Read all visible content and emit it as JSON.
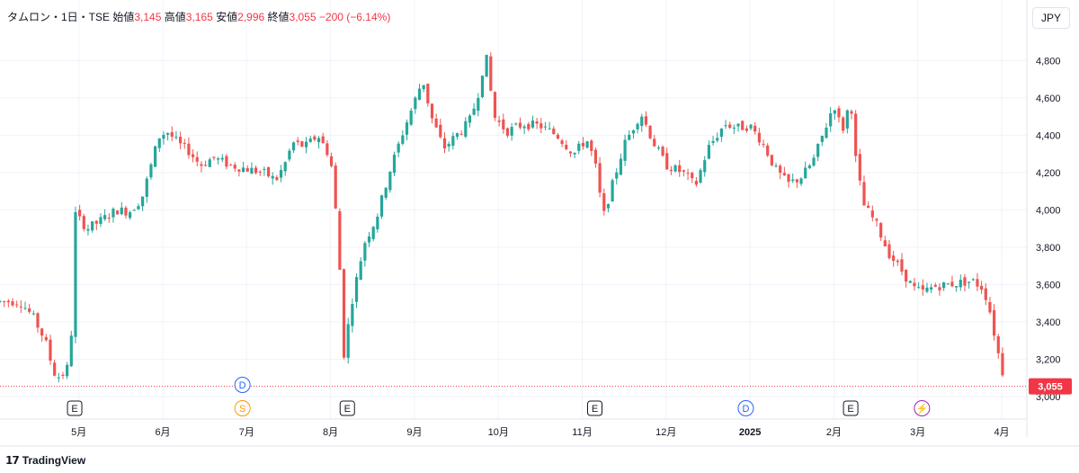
{
  "header": {
    "symbol": "タムロン・1日・TSE",
    "open_label": "始値",
    "open": "3,145",
    "high_label": "高値",
    "high": "3,165",
    "low_label": "安値",
    "low": "2,996",
    "close_label": "終値",
    "close": "3,055",
    "change": "−200 (−6.14%)"
  },
  "currency_label": "JPY",
  "last_price_label": "3,055",
  "brand": "TradingView",
  "colors": {
    "up": "#26A69A",
    "down": "#EF5350",
    "last": "#F23645",
    "axis_text": "#131722",
    "grid": "#F0F3FA"
  },
  "events": [
    {
      "label": "E",
      "x_month": 4.95,
      "row": 2,
      "kind": "earnings",
      "color": "#131722"
    },
    {
      "label": "D",
      "x_month": 6.95,
      "row": 1,
      "kind": "dividend",
      "color": "#2962FF"
    },
    {
      "label": "S",
      "x_month": 6.95,
      "row": 2,
      "kind": "split",
      "color": "#FF9800"
    },
    {
      "label": "E",
      "x_month": 8.2,
      "row": 2,
      "kind": "earnings",
      "color": "#131722"
    },
    {
      "label": "E",
      "x_month": 11.15,
      "row": 2,
      "kind": "earnings",
      "color": "#131722"
    },
    {
      "label": "D",
      "x_month": 12.95,
      "row": 2,
      "kind": "dividend",
      "color": "#2962FF"
    },
    {
      "label": "E",
      "x_month": 14.2,
      "row": 2,
      "kind": "earnings",
      "color": "#131722"
    },
    {
      "label": "⚡",
      "x_month": 15.05,
      "row": 2,
      "kind": "flash",
      "color": "#9C27B0"
    }
  ],
  "chart_data": {
    "type": "candlestick",
    "y_axis": {
      "ticks": [
        3000,
        3200,
        3400,
        3600,
        3800,
        4000,
        4200,
        4400,
        4600,
        4800
      ],
      "tick_labels": [
        "3,000",
        "3,200",
        "3,400",
        "3,600",
        "3,800",
        "4,000",
        "4,200",
        "4,400",
        "4,600",
        "4,800"
      ],
      "range": [
        2880,
        4980
      ],
      "position": "right"
    },
    "x_axis": {
      "month_labels": [
        {
          "m": 5,
          "label": "5月"
        },
        {
          "m": 6,
          "label": "6月"
        },
        {
          "m": 7,
          "label": "7月"
        },
        {
          "m": 8,
          "label": "8月"
        },
        {
          "m": 9,
          "label": "9月"
        },
        {
          "m": 10,
          "label": "10月"
        },
        {
          "m": 11,
          "label": "11月"
        },
        {
          "m": 12,
          "label": "12月"
        },
        {
          "m": 13,
          "label": "2025"
        },
        {
          "m": 14,
          "label": "2月"
        },
        {
          "m": 15,
          "label": "3月"
        },
        {
          "m": 16,
          "label": "4月"
        }
      ],
      "range_months": [
        4.06,
        16.3
      ]
    },
    "grid": true,
    "last_price": 3055,
    "price_path": [
      [
        4.06,
        3510
      ],
      [
        4.3,
        3510
      ],
      [
        4.45,
        3430
      ],
      [
        4.6,
        3300
      ],
      [
        4.7,
        3130
      ],
      [
        4.78,
        3100
      ],
      [
        4.9,
        3180
      ],
      [
        4.95,
        3980
      ],
      [
        5.1,
        3900
      ],
      [
        5.25,
        3940
      ],
      [
        5.45,
        4000
      ],
      [
        5.6,
        3990
      ],
      [
        5.75,
        4060
      ],
      [
        5.85,
        4220
      ],
      [
        5.95,
        4390
      ],
      [
        6.05,
        4420
      ],
      [
        6.2,
        4350
      ],
      [
        6.3,
        4320
      ],
      [
        6.45,
        4240
      ],
      [
        6.6,
        4280
      ],
      [
        6.8,
        4240
      ],
      [
        7.0,
        4220
      ],
      [
        7.2,
        4200
      ],
      [
        7.35,
        4160
      ],
      [
        7.45,
        4240
      ],
      [
        7.55,
        4360
      ],
      [
        7.7,
        4340
      ],
      [
        7.85,
        4400
      ],
      [
        8.0,
        4280
      ],
      [
        8.05,
        4050
      ],
      [
        8.1,
        3800
      ],
      [
        8.15,
        3200
      ],
      [
        8.25,
        3500
      ],
      [
        8.4,
        3820
      ],
      [
        8.55,
        3960
      ],
      [
        8.7,
        4200
      ],
      [
        8.85,
        4400
      ],
      [
        9.0,
        4580
      ],
      [
        9.1,
        4700
      ],
      [
        9.2,
        4500
      ],
      [
        9.35,
        4330
      ],
      [
        9.5,
        4400
      ],
      [
        9.65,
        4470
      ],
      [
        9.75,
        4600
      ],
      [
        9.85,
        4840
      ],
      [
        9.95,
        4500
      ],
      [
        10.1,
        4420
      ],
      [
        10.3,
        4460
      ],
      [
        10.5,
        4450
      ],
      [
        10.7,
        4400
      ],
      [
        10.9,
        4300
      ],
      [
        11.05,
        4380
      ],
      [
        11.15,
        4260
      ],
      [
        11.25,
        3960
      ],
      [
        11.35,
        4120
      ],
      [
        11.5,
        4350
      ],
      [
        11.7,
        4520
      ],
      [
        11.85,
        4360
      ],
      [
        12.0,
        4240
      ],
      [
        12.2,
        4200
      ],
      [
        12.35,
        4130
      ],
      [
        12.5,
        4330
      ],
      [
        12.7,
        4460
      ],
      [
        12.85,
        4440
      ],
      [
        13.0,
        4450
      ],
      [
        13.15,
        4360
      ],
      [
        13.3,
        4220
      ],
      [
        13.45,
        4140
      ],
      [
        13.6,
        4170
      ],
      [
        13.75,
        4260
      ],
      [
        13.9,
        4440
      ],
      [
        14.0,
        4570
      ],
      [
        14.1,
        4420
      ],
      [
        14.2,
        4600
      ],
      [
        14.25,
        4300
      ],
      [
        14.35,
        4030
      ],
      [
        14.5,
        3930
      ],
      [
        14.65,
        3770
      ],
      [
        14.8,
        3680
      ],
      [
        14.95,
        3580
      ],
      [
        15.05,
        3560
      ],
      [
        15.2,
        3590
      ],
      [
        15.35,
        3600
      ],
      [
        15.5,
        3610
      ],
      [
        15.65,
        3620
      ],
      [
        15.78,
        3580
      ],
      [
        15.85,
        3480
      ],
      [
        15.95,
        3250
      ],
      [
        16.05,
        3055
      ]
    ],
    "candles_per_month": 20
  }
}
